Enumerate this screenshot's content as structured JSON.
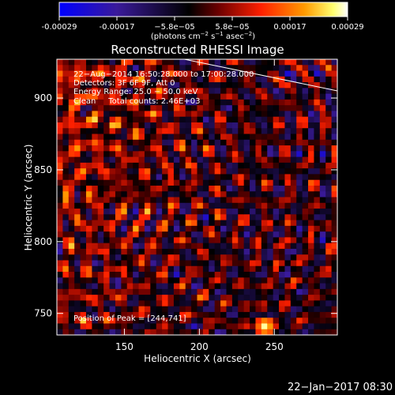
{
  "chart_data": {
    "type": "heatmap",
    "title": "Reconstructed RHESSI Image",
    "colorbar": {
      "tick_labels": [
        "-0.00029",
        "-0.00017",
        "−5.8e−05",
        "5.8e−05",
        "0.00017",
        "0.00029"
      ],
      "label_main": "(photons cm",
      "label_sup1": "−2",
      "label_mid1": " s",
      "label_sup2": "−1",
      "label_mid2": " asec",
      "label_sup3": "−2",
      "label_end": ")",
      "range": [
        -0.00029,
        0.00029
      ],
      "colors": [
        "#0000ff",
        "#3a1a9a",
        "#000000",
        "#8a0000",
        "#ff2000",
        "#ff9a00",
        "#ffff70",
        "#ffffff"
      ]
    },
    "info_lines": [
      "22−Aug−2014 16:50:28.000 to 17:00:28.000",
      "Detectors: 3F 6F 9F, Att 0",
      "Energy Range: 25.0 − 50.0 keV",
      "Clean     Total counts: 2.46E+03"
    ],
    "peak_text": "Position of Peak = [244,741]",
    "peak": [
      244,
      741
    ],
    "xlabel": "Heliocentric X (arcsec)",
    "ylabel": "Heliocentric Y (arcsec)",
    "xlim": [
      105,
      292
    ],
    "ylim": [
      735,
      927
    ],
    "xticks": [
      150,
      200,
      250
    ],
    "yticks": [
      750,
      800,
      850,
      900
    ],
    "grid": false,
    "limb_line": [
      [
        190,
        927
      ],
      [
        292,
        905
      ]
    ]
  },
  "footer_date": "22−Jan−2017 08:30"
}
